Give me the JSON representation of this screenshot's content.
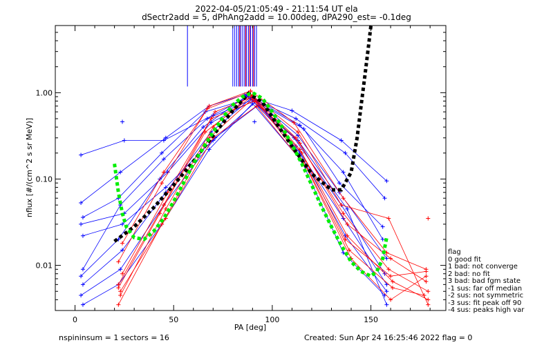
{
  "header": {
    "title_line1": "2022-04-05/21:05:49 - 21:11:54 UT ela",
    "title_line2": "dSectr2add = 5, dPhAng2add = 10.00deg, dPA290_est=   -0.1deg"
  },
  "footer": {
    "left": "nspininsum =  1  sectors = 16",
    "right": "Created: Sun Apr 24 16:25:46 2022   flag = 0"
  },
  "legend": {
    "title": "flag",
    "items": [
      " 0 good fit",
      " 1 bad: not converge",
      " 2 bad: no fit",
      " 3 bad: bad fgm state",
      "-1 sus: far off median",
      "-2 sus: not symmetric",
      "-3 sus: fit peak off 90",
      "-4 sus: peaks high var"
    ]
  },
  "chart_data": {
    "type": "line",
    "xlabel": "PA [deg]",
    "ylabel": "nflux [#/(cm^2 s sr MeV)]",
    "xlim": [
      -10,
      188
    ],
    "ylim": [
      0.003,
      6
    ],
    "yscale": "log",
    "x_ticks": [
      0,
      50,
      100,
      150
    ],
    "x_tick_labels": [
      "0",
      "50",
      "100",
      "150"
    ],
    "y_ticks": [
      0.01,
      0.1,
      1.0
    ],
    "y_tick_labels": [
      "0.01",
      "0.10",
      "1.00"
    ],
    "colors": {
      "blue": "#0000ff",
      "red": "#ff0000",
      "green": "#00ee00",
      "black": "#000000"
    },
    "series": [
      {
        "color": "#000000",
        "style": "dashed-thick",
        "x": [
          20,
          30,
          40,
          50,
          60,
          70,
          80,
          88,
          95,
          100,
          110,
          120,
          130,
          135,
          140,
          143,
          145,
          147,
          149,
          150
        ],
        "y": [
          0.019,
          0.028,
          0.047,
          0.085,
          0.16,
          0.32,
          0.62,
          0.98,
          0.78,
          0.52,
          0.24,
          0.115,
          0.075,
          0.075,
          0.12,
          0.3,
          0.7,
          1.6,
          3.8,
          6.0
        ]
      },
      {
        "color": "#00ee00",
        "style": "dashed-thick",
        "x": [
          20,
          22,
          24,
          26,
          30,
          35,
          40,
          45,
          50,
          55,
          60,
          65,
          70,
          75,
          80,
          85,
          90,
          95,
          100,
          105,
          110,
          115,
          120,
          125,
          130,
          135,
          140,
          145,
          150,
          153,
          156,
          157,
          158
        ],
        "y": [
          0.15,
          0.07,
          0.04,
          0.028,
          0.021,
          0.02,
          0.025,
          0.035,
          0.055,
          0.09,
          0.15,
          0.23,
          0.35,
          0.52,
          0.72,
          0.9,
          1.0,
          0.86,
          0.6,
          0.4,
          0.25,
          0.15,
          0.085,
          0.048,
          0.028,
          0.017,
          0.011,
          0.0085,
          0.0075,
          0.0085,
          0.012,
          0.016,
          0.021
        ]
      },
      {
        "color": "#0000ff",
        "x": [
          3,
          25,
          45,
          70,
          88,
          110,
          135,
          158
        ],
        "y": [
          0.19,
          0.28,
          0.28,
          0.55,
          0.9,
          0.62,
          0.28,
          0.095
        ]
      },
      {
        "color": "#0000ff",
        "x": [
          3,
          23,
          46,
          68,
          86,
          112,
          137,
          157
        ],
        "y": [
          0.053,
          0.12,
          0.3,
          0.7,
          0.95,
          0.5,
          0.2,
          0.06
        ]
      },
      {
        "color": "#0000ff",
        "x": [
          4,
          22,
          44,
          66,
          90,
          114,
          136,
          156
        ],
        "y": [
          0.036,
          0.06,
          0.2,
          0.6,
          0.88,
          0.42,
          0.12,
          0.02
        ]
      },
      {
        "color": "#0000ff",
        "x": [
          4,
          23,
          45,
          67,
          91,
          113,
          134,
          158
        ],
        "y": [
          0.009,
          0.05,
          0.17,
          0.5,
          0.85,
          0.32,
          0.07,
          0.012
        ]
      },
      {
        "color": "#0000ff",
        "x": [
          3,
          22,
          43,
          65,
          87,
          111,
          135,
          157
        ],
        "y": [
          0.0075,
          0.02,
          0.1,
          0.4,
          0.92,
          0.3,
          0.05,
          0.008
        ]
      },
      {
        "color": "#0000ff",
        "x": [
          4,
          24,
          46,
          69,
          89,
          112,
          136,
          158
        ],
        "y": [
          0.006,
          0.015,
          0.07,
          0.35,
          0.85,
          0.24,
          0.035,
          0.006
        ]
      },
      {
        "color": "#0000ff",
        "x": [
          3,
          23,
          45,
          70,
          92,
          114,
          137,
          158
        ],
        "y": [
          0.0045,
          0.009,
          0.05,
          0.28,
          0.8,
          0.2,
          0.022,
          0.005
        ]
      },
      {
        "color": "#0000ff",
        "x": [
          4,
          22,
          44,
          68,
          90,
          115,
          136,
          157
        ],
        "y": [
          0.0035,
          0.006,
          0.03,
          0.22,
          0.75,
          0.16,
          0.014,
          0.0045
        ]
      },
      {
        "color": "#0000ff",
        "x": [
          3,
          25,
          47,
          69,
          91,
          116,
          134,
          156
        ],
        "y": [
          0.03,
          0.04,
          0.12,
          0.45,
          0.82,
          0.38,
          0.09,
          0.028
        ]
      },
      {
        "color": "#0000ff",
        "x": [
          4,
          24,
          46,
          71,
          93,
          113,
          138,
          158
        ],
        "y": [
          0.022,
          0.03,
          0.08,
          0.3,
          0.72,
          0.28,
          0.045,
          0.0035
        ]
      },
      {
        "color": "#ff0000",
        "x": [
          22,
          44,
          68,
          90,
          114,
          138,
          160,
          178
        ],
        "y": [
          0.0035,
          0.03,
          0.3,
          0.85,
          0.26,
          0.03,
          0.012,
          0.0065
        ]
      },
      {
        "color": "#ff0000",
        "x": [
          23,
          46,
          70,
          89,
          112,
          136,
          159,
          179
        ],
        "y": [
          0.0045,
          0.045,
          0.4,
          0.95,
          0.3,
          0.04,
          0.009,
          0.005
        ]
      },
      {
        "color": "#ff0000",
        "x": [
          22,
          45,
          69,
          91,
          115,
          137,
          160,
          178
        ],
        "y": [
          0.006,
          0.05,
          0.5,
          0.8,
          0.2,
          0.02,
          0.0075,
          0.0085
        ]
      },
      {
        "color": "#ff0000",
        "x": [
          24,
          47,
          71,
          90,
          116,
          139,
          161,
          177
        ],
        "y": [
          0.008,
          0.07,
          0.6,
          0.9,
          0.16,
          0.015,
          0.0055,
          0.0045
        ]
      },
      {
        "color": "#ff0000",
        "x": [
          22,
          44,
          67,
          88,
          113,
          135,
          159,
          179
        ],
        "y": [
          0.011,
          0.09,
          0.65,
          1.0,
          0.35,
          0.05,
          0.035,
          0.0035
        ]
      },
      {
        "color": "#ff0000",
        "x": [
          23,
          46,
          70,
          92,
          117,
          140,
          160,
          178
        ],
        "y": [
          0.005,
          0.035,
          0.3,
          0.7,
          0.14,
          0.012,
          0.004,
          0.0075
        ]
      },
      {
        "color": "#ff0000",
        "x": [
          24,
          45,
          68,
          89,
          111,
          136,
          158,
          178
        ],
        "y": [
          0.018,
          0.12,
          0.7,
          1.05,
          0.45,
          0.06,
          0.014,
          0.009
        ]
      },
      {
        "color": "#ff0000",
        "x": [
          22,
          43,
          66,
          90,
          114,
          138,
          161,
          179
        ],
        "y": [
          0.0055,
          0.04,
          0.35,
          0.92,
          0.22,
          0.022,
          0.0065,
          0.004
        ]
      }
    ],
    "vertical_lines_blue_x": [
      57,
      80,
      81,
      82,
      83,
      84,
      85,
      86,
      87,
      88,
      89,
      90,
      91,
      92
    ],
    "vertical_lines_red_x": [
      83.5,
      86.5,
      88.5,
      90.5
    ],
    "isolated_points": [
      {
        "color": "#ff0000",
        "x": 179,
        "y": 0.035
      },
      {
        "color": "#0000ff",
        "x": 24,
        "y": 0.46
      },
      {
        "color": "#0000ff",
        "x": 91,
        "y": 0.46
      }
    ]
  }
}
